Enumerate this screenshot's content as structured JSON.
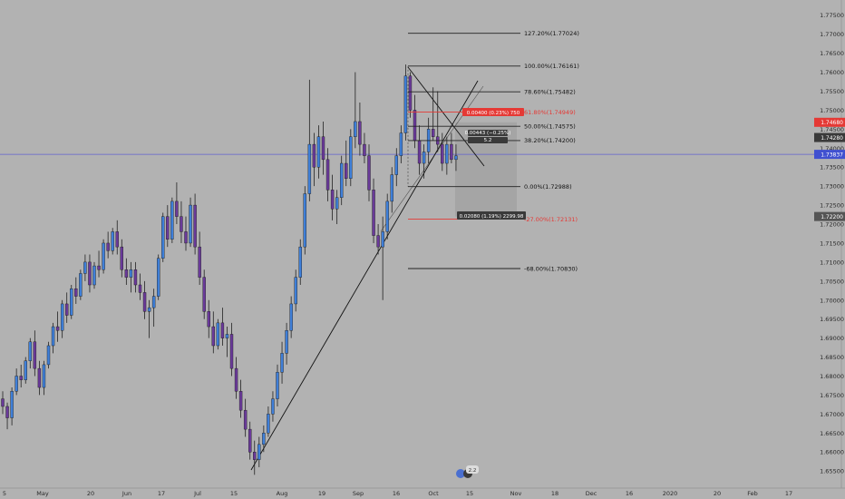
{
  "colors": {
    "background": "#b2b2b2",
    "up": "#3f7fd8",
    "down": "#6a3a9a",
    "wick": "#222222",
    "fib_line": "#222222",
    "fib_red": "#e53935",
    "h_line": "#6060d0",
    "tag_red": "#e53935",
    "tag_dark": "#3a3a3a",
    "tag_blue": "#4050d0",
    "tag_gray": "#555555",
    "trend": "#111111",
    "measure_box": "#9a9a9a",
    "grid_axis": "#999999"
  },
  "chart_data": {
    "type": "candlestick",
    "title": "",
    "xlabel": "",
    "ylabel": "",
    "ylim": [
      1.6505,
      1.779
    ],
    "y_ticks": [
      "1.77500",
      "1.77000",
      "1.76500",
      "1.76000",
      "1.75500",
      "1.75000",
      "1.74500",
      "1.74000",
      "1.73500",
      "1.73000",
      "1.72500",
      "1.72000",
      "1.71500",
      "1.71000",
      "1.70500",
      "1.70000",
      "1.69500",
      "1.69000",
      "1.68500",
      "1.68000",
      "1.67500",
      "1.67000",
      "1.66500",
      "1.66000",
      "1.65500"
    ],
    "x_ticks": [
      "5",
      "May",
      "20",
      "Jun",
      "17",
      "Jul",
      "15",
      "Aug",
      "19",
      "Sep",
      "16",
      "Oct",
      "15",
      "Nov",
      "18",
      "Dec",
      "16",
      "2020",
      "20",
      "Feb",
      "17"
    ],
    "price_tags": [
      {
        "label": "1.74680",
        "value": 1.7468,
        "kind": "red"
      },
      {
        "label": "1.74280",
        "value": 1.7428,
        "kind": "dark"
      },
      {
        "label": "1.73837",
        "value": 1.73837,
        "kind": "blue"
      },
      {
        "label": "1.72200",
        "value": 1.722,
        "kind": "gray"
      }
    ],
    "horizontal_line": 1.73837,
    "fib_levels": [
      {
        "label": "127.20%(1.77024)",
        "value": 1.77024,
        "color": "dark"
      },
      {
        "label": "100.00%(1.76161)",
        "value": 1.76161,
        "color": "dark"
      },
      {
        "label": "78.60%(1.75482)",
        "value": 1.75482,
        "color": "dark"
      },
      {
        "label": "61.80%(1.74949)",
        "value": 1.74949,
        "color": "red"
      },
      {
        "label": "50.00%(1.74575)",
        "value": 1.74575,
        "color": "dark"
      },
      {
        "label": "38.20%(1.74200)",
        "value": 1.742,
        "color": "dark"
      },
      {
        "label": "0.00%(1.72988)",
        "value": 1.72988,
        "color": "dark"
      },
      {
        "label": "-27.00%(1.72131)",
        "value": 1.72131,
        "color": "red"
      },
      {
        "label": "-68.00%(1.70830)",
        "value": 1.7083,
        "color": "dark"
      }
    ],
    "measure_labels": [
      {
        "label": "0.00400 (0.23%) 750",
        "kind": "red"
      },
      {
        "label": "0.00443 (−0.25%)",
        "kind": "dark"
      },
      {
        "label": "5.2",
        "kind": "dark"
      },
      {
        "label": "0.02080 (1.19%) 2299.98",
        "kind": "dark"
      }
    ],
    "badge": "2.2",
    "candles": [
      [
        1.674,
        1.676,
        1.67,
        1.672
      ],
      [
        1.672,
        1.673,
        1.666,
        1.669
      ],
      [
        1.669,
        1.677,
        1.667,
        1.676
      ],
      [
        1.676,
        1.682,
        1.675,
        1.68
      ],
      [
        1.68,
        1.683,
        1.677,
        1.679
      ],
      [
        1.679,
        1.685,
        1.678,
        1.684
      ],
      [
        1.684,
        1.69,
        1.682,
        1.689
      ],
      [
        1.689,
        1.692,
        1.68,
        1.682
      ],
      [
        1.682,
        1.684,
        1.675,
        1.677
      ],
      [
        1.677,
        1.684,
        1.675,
        1.683
      ],
      [
        1.683,
        1.689,
        1.682,
        1.688
      ],
      [
        1.688,
        1.694,
        1.686,
        1.693
      ],
      [
        1.693,
        1.697,
        1.689,
        1.692
      ],
      [
        1.692,
        1.7,
        1.69,
        1.699
      ],
      [
        1.699,
        1.702,
        1.694,
        1.696
      ],
      [
        1.696,
        1.704,
        1.695,
        1.703
      ],
      [
        1.703,
        1.706,
        1.699,
        1.701
      ],
      [
        1.701,
        1.708,
        1.7,
        1.707
      ],
      [
        1.707,
        1.712,
        1.705,
        1.71
      ],
      [
        1.71,
        1.712,
        1.702,
        1.704
      ],
      [
        1.704,
        1.71,
        1.703,
        1.709
      ],
      [
        1.709,
        1.713,
        1.706,
        1.708
      ],
      [
        1.708,
        1.716,
        1.707,
        1.715
      ],
      [
        1.715,
        1.718,
        1.711,
        1.713
      ],
      [
        1.713,
        1.719,
        1.712,
        1.718
      ],
      [
        1.718,
        1.721,
        1.712,
        1.714
      ],
      [
        1.714,
        1.716,
        1.706,
        1.708
      ],
      [
        1.708,
        1.711,
        1.704,
        1.706
      ],
      [
        1.706,
        1.71,
        1.702,
        1.708
      ],
      [
        1.708,
        1.71,
        1.702,
        1.704
      ],
      [
        1.704,
        1.707,
        1.7,
        1.702
      ],
      [
        1.702,
        1.705,
        1.695,
        1.697
      ],
      [
        1.697,
        1.7,
        1.69,
        1.698
      ],
      [
        1.698,
        1.703,
        1.693,
        1.701
      ],
      [
        1.701,
        1.712,
        1.7,
        1.711
      ],
      [
        1.711,
        1.723,
        1.71,
        1.722
      ],
      [
        1.722,
        1.725,
        1.714,
        1.716
      ],
      [
        1.716,
        1.727,
        1.715,
        1.726
      ],
      [
        1.726,
        1.731,
        1.72,
        1.722
      ],
      [
        1.722,
        1.726,
        1.715,
        1.718
      ],
      [
        1.718,
        1.722,
        1.713,
        1.715
      ],
      [
        1.715,
        1.727,
        1.714,
        1.725
      ],
      [
        1.725,
        1.728,
        1.712,
        1.714
      ],
      [
        1.714,
        1.718,
        1.704,
        1.706
      ],
      [
        1.706,
        1.708,
        1.695,
        1.697
      ],
      [
        1.697,
        1.7,
        1.69,
        1.693
      ],
      [
        1.693,
        1.697,
        1.686,
        1.688
      ],
      [
        1.688,
        1.695,
        1.687,
        1.694
      ],
      [
        1.694,
        1.698,
        1.688,
        1.69
      ],
      [
        1.69,
        1.693,
        1.685,
        1.691
      ],
      [
        1.691,
        1.694,
        1.68,
        1.682
      ],
      [
        1.682,
        1.685,
        1.674,
        1.676
      ],
      [
        1.676,
        1.679,
        1.669,
        1.671
      ],
      [
        1.671,
        1.674,
        1.664,
        1.666
      ],
      [
        1.666,
        1.668,
        1.658,
        1.66
      ],
      [
        1.66,
        1.663,
        1.654,
        1.658
      ],
      [
        1.658,
        1.664,
        1.656,
        1.662
      ],
      [
        1.662,
        1.667,
        1.66,
        1.665
      ],
      [
        1.665,
        1.672,
        1.664,
        1.67
      ],
      [
        1.67,
        1.676,
        1.668,
        1.674
      ],
      [
        1.674,
        1.683,
        1.672,
        1.681
      ],
      [
        1.681,
        1.689,
        1.678,
        1.686
      ],
      [
        1.686,
        1.694,
        1.683,
        1.692
      ],
      [
        1.692,
        1.701,
        1.69,
        1.699
      ],
      [
        1.699,
        1.708,
        1.697,
        1.706
      ],
      [
        1.706,
        1.716,
        1.704,
        1.714
      ],
      [
        1.714,
        1.73,
        1.712,
        1.728
      ],
      [
        1.728,
        1.758,
        1.726,
        1.741
      ],
      [
        1.741,
        1.744,
        1.73,
        1.735
      ],
      [
        1.735,
        1.746,
        1.732,
        1.743
      ],
      [
        1.743,
        1.747,
        1.733,
        1.737
      ],
      [
        1.737,
        1.74,
        1.726,
        1.729
      ],
      [
        1.729,
        1.733,
        1.721,
        1.724
      ],
      [
        1.724,
        1.729,
        1.72,
        1.727
      ],
      [
        1.727,
        1.738,
        1.725,
        1.736
      ],
      [
        1.736,
        1.742,
        1.73,
        1.732
      ],
      [
        1.732,
        1.745,
        1.73,
        1.743
      ],
      [
        1.743,
        1.76,
        1.74,
        1.747
      ],
      [
        1.747,
        1.752,
        1.738,
        1.741
      ],
      [
        1.741,
        1.744,
        1.736,
        1.738
      ],
      [
        1.738,
        1.741,
        1.726,
        1.729
      ],
      [
        1.729,
        1.732,
        1.715,
        1.717
      ],
      [
        1.717,
        1.72,
        1.712,
        1.714
      ],
      [
        1.714,
        1.722,
        1.7,
        1.718
      ],
      [
        1.718,
        1.728,
        1.716,
        1.726
      ],
      [
        1.726,
        1.735,
        1.723,
        1.733
      ],
      [
        1.733,
        1.74,
        1.73,
        1.738
      ],
      [
        1.738,
        1.746,
        1.736,
        1.744
      ],
      [
        1.744,
        1.762,
        1.742,
        1.759
      ],
      [
        1.759,
        1.76,
        1.748,
        1.75
      ],
      [
        1.75,
        1.754,
        1.74,
        1.742
      ],
      [
        1.742,
        1.746,
        1.733,
        1.736
      ],
      [
        1.736,
        1.741,
        1.732,
        1.739
      ],
      [
        1.739,
        1.748,
        1.736,
        1.745
      ],
      [
        1.745,
        1.756,
        1.742,
        1.743
      ],
      [
        1.743,
        1.755,
        1.739,
        1.741
      ],
      [
        1.741,
        1.744,
        1.734,
        1.736
      ],
      [
        1.736,
        1.743,
        1.733,
        1.741
      ],
      [
        1.741,
        1.744,
        1.736,
        1.737
      ],
      [
        1.737,
        1.741,
        1.734,
        1.738
      ]
    ]
  }
}
